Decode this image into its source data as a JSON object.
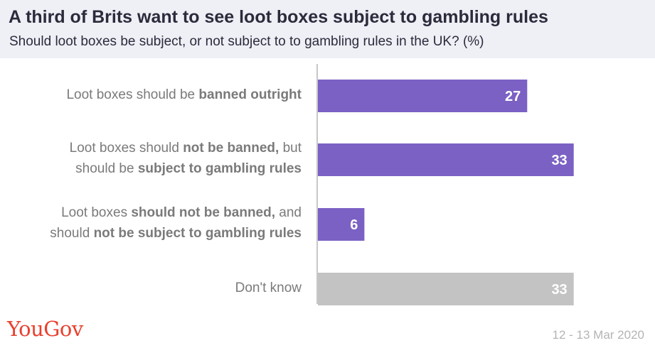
{
  "header": {
    "title": "A third of Brits want to see loot boxes subject to gambling rules",
    "subtitle": "Should loot boxes be subject, or not subject to to gambling rules in the UK? (%)"
  },
  "chart_data": {
    "type": "bar",
    "orientation": "horizontal",
    "title": "A third of Brits want to see loot boxes subject to gambling rules",
    "subtitle": "Should loot boxes be subject, or not subject to to gambling rules in the UK? (%)",
    "categories": [
      "Loot boxes should be banned outright",
      "Loot boxes should not be banned, but should be subject to gambling rules",
      "Loot boxes should not be banned, and should not be subject to gambling rules",
      "Don't know"
    ],
    "category_parts": [
      [
        [
          {
            "t": "Loot boxes should be ",
            "b": false
          },
          {
            "t": "banned outright",
            "b": true
          }
        ]
      ],
      [
        [
          {
            "t": "Loot boxes should ",
            "b": false
          },
          {
            "t": "not be banned,",
            "b": true
          },
          {
            "t": " but",
            "b": false
          }
        ],
        [
          {
            "t": "should be ",
            "b": false
          },
          {
            "t": "subject to gambling rules",
            "b": true
          }
        ]
      ],
      [
        [
          {
            "t": "Loot boxes ",
            "b": false
          },
          {
            "t": "should not be banned,",
            "b": true
          },
          {
            "t": " and",
            "b": false
          }
        ],
        [
          {
            "t": "should ",
            "b": false
          },
          {
            "t": "not be subject to gambling rules",
            "b": true
          }
        ]
      ],
      [
        [
          {
            "t": "Don't know",
            "b": false
          }
        ]
      ]
    ],
    "values": [
      27,
      33,
      6,
      33
    ],
    "bar_colors": [
      "#7b61c4",
      "#7b61c4",
      "#7b61c4",
      "#c3c3c3"
    ],
    "value_label_color": "#ffffff",
    "xlim": [
      0,
      100
    ],
    "grid": false,
    "legend": "none"
  },
  "footer": {
    "logo": "YouGov",
    "date": "12 - 13 Mar 2020"
  }
}
